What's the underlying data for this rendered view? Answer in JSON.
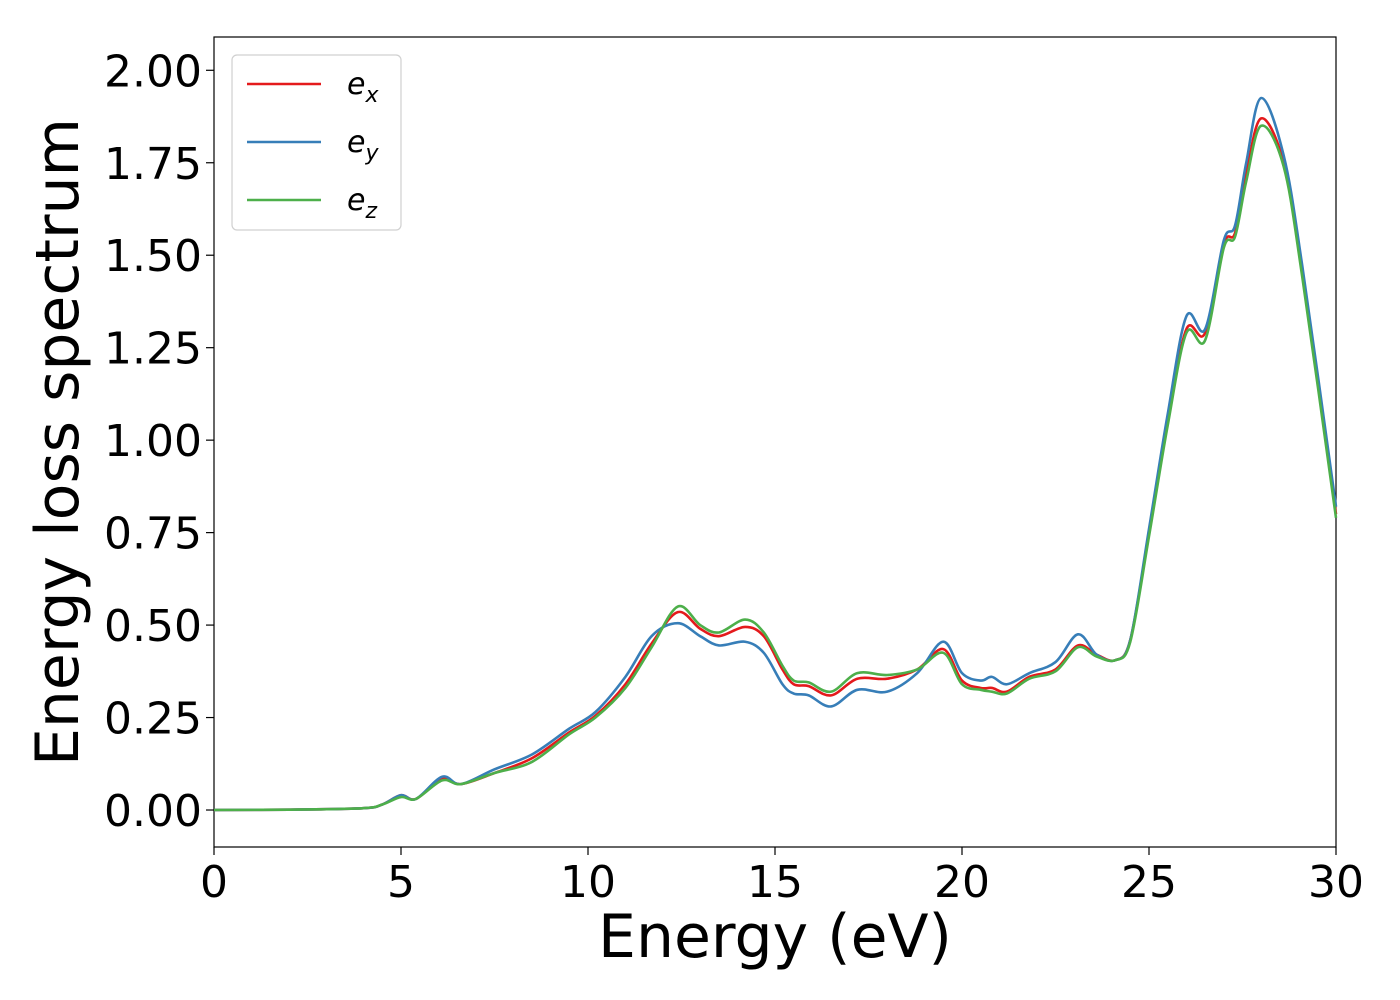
{
  "chart_data": {
    "type": "line",
    "title": "",
    "xlabel": "Energy (eV)",
    "ylabel": "Energy loss spectrum",
    "xlim": [
      0,
      30
    ],
    "ylim": [
      -0.1,
      2.09
    ],
    "xticks": [
      0,
      5,
      10,
      15,
      20,
      25,
      30
    ],
    "yticks": [
      0.0,
      0.25,
      0.5,
      0.75,
      1.0,
      1.25,
      1.5,
      1.75,
      2.0
    ],
    "xtick_labels": [
      "0",
      "5",
      "10",
      "15",
      "20",
      "25",
      "30"
    ],
    "ytick_labels": [
      "0.00",
      "0.25",
      "0.50",
      "0.75",
      "1.00",
      "1.25",
      "1.50",
      "1.75",
      "2.00"
    ],
    "grid": false,
    "legend_position": "top-left",
    "x": [
      0,
      2,
      4,
      4.5,
      5.0,
      5.4,
      6.1,
      6.6,
      7.5,
      8.5,
      9.5,
      10.2,
      11.0,
      11.7,
      12.4,
      13.0,
      13.5,
      14.2,
      14.7,
      15.2,
      15.5,
      15.9,
      16.5,
      17.2,
      18.0,
      18.8,
      19.5,
      20.0,
      20.5,
      20.8,
      21.2,
      21.8,
      22.5,
      23.1,
      23.6,
      24.1,
      24.5,
      25.0,
      25.5,
      26.0,
      26.5,
      27.0,
      27.3,
      27.6,
      28.0,
      28.6,
      29.1,
      30.0
    ],
    "series": [
      {
        "name": "e_x",
        "label_main": "e",
        "label_sub": "x",
        "color": "#e41a1c",
        "values": [
          0,
          0.001,
          0.005,
          0.015,
          0.04,
          0.03,
          0.085,
          0.07,
          0.1,
          0.14,
          0.21,
          0.255,
          0.34,
          0.45,
          0.535,
          0.49,
          0.47,
          0.495,
          0.47,
          0.38,
          0.34,
          0.335,
          0.31,
          0.355,
          0.355,
          0.38,
          0.435,
          0.35,
          0.33,
          0.33,
          0.32,
          0.36,
          0.38,
          0.445,
          0.42,
          0.405,
          0.46,
          0.75,
          1.05,
          1.3,
          1.29,
          1.53,
          1.56,
          1.72,
          1.87,
          1.75,
          1.45,
          0.8
        ]
      },
      {
        "name": "e_y",
        "label_main": "e",
        "label_sub": "y",
        "color": "#377eb8",
        "values": [
          0,
          0.001,
          0.005,
          0.015,
          0.04,
          0.03,
          0.09,
          0.07,
          0.11,
          0.15,
          0.22,
          0.265,
          0.36,
          0.47,
          0.505,
          0.47,
          0.445,
          0.455,
          0.425,
          0.34,
          0.315,
          0.31,
          0.28,
          0.325,
          0.32,
          0.37,
          0.455,
          0.37,
          0.35,
          0.36,
          0.34,
          0.37,
          0.4,
          0.475,
          0.42,
          0.405,
          0.46,
          0.76,
          1.07,
          1.335,
          1.3,
          1.54,
          1.58,
          1.75,
          1.925,
          1.77,
          1.47,
          0.82
        ]
      },
      {
        "name": "e_z",
        "label_main": "e",
        "label_sub": "z",
        "color": "#4daf4a",
        "values": [
          0,
          0.001,
          0.005,
          0.015,
          0.035,
          0.03,
          0.08,
          0.07,
          0.1,
          0.13,
          0.205,
          0.25,
          0.33,
          0.44,
          0.55,
          0.5,
          0.48,
          0.515,
          0.48,
          0.39,
          0.35,
          0.345,
          0.32,
          0.37,
          0.365,
          0.38,
          0.425,
          0.34,
          0.325,
          0.32,
          0.315,
          0.355,
          0.375,
          0.44,
          0.415,
          0.405,
          0.455,
          0.74,
          1.04,
          1.29,
          1.27,
          1.52,
          1.55,
          1.7,
          1.85,
          1.74,
          1.44,
          0.79
        ]
      }
    ]
  }
}
